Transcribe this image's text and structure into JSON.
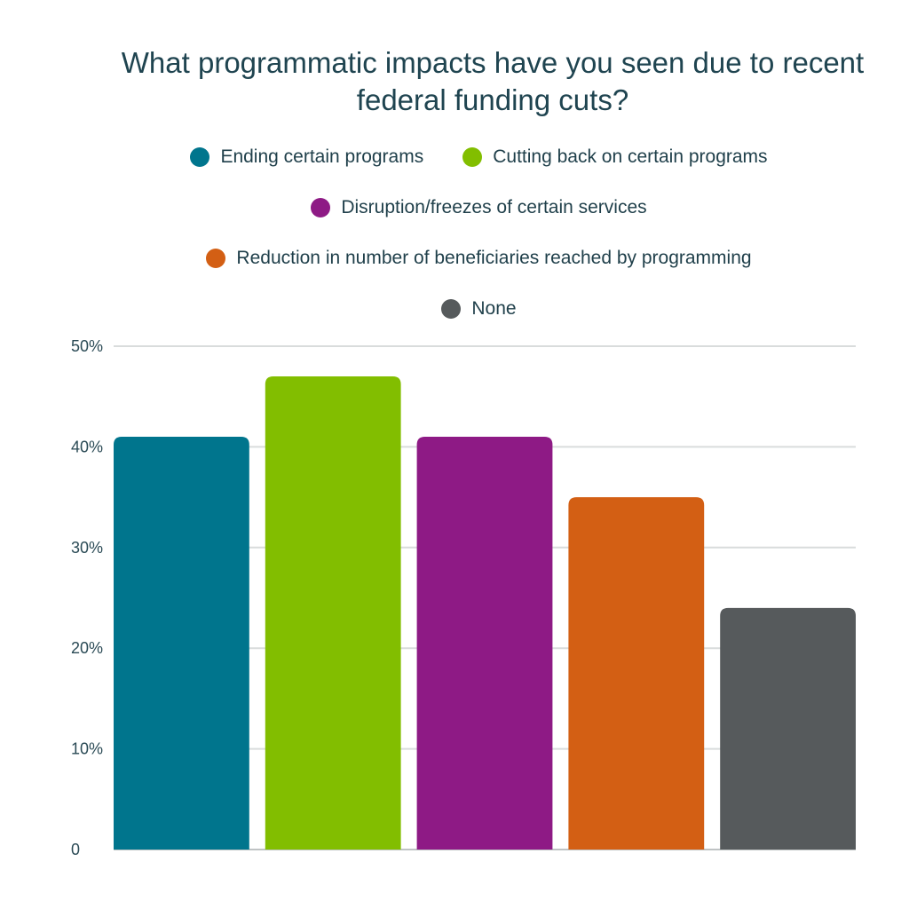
{
  "chart_data": {
    "type": "bar",
    "title": "What programmatic impacts have you seen due to recent federal funding cuts?",
    "categories": [
      "Ending certain programs",
      "Cutting back on certain programs",
      "Disruption/freezes of certain services",
      "Reduction in number of beneficiaries reached by programming",
      "None"
    ],
    "values": [
      41,
      47,
      41,
      35,
      24
    ],
    "colors": [
      "#00758d",
      "#82be00",
      "#8e1a85",
      "#d35f14",
      "#565a5c"
    ],
    "ylim": [
      0,
      50
    ],
    "yticks": [
      0,
      10,
      20,
      30,
      40,
      50
    ],
    "ytick_labels": [
      "0",
      "10%",
      "20%",
      "30%",
      "40%",
      "50%"
    ],
    "grid": true,
    "legend_position": "top"
  }
}
